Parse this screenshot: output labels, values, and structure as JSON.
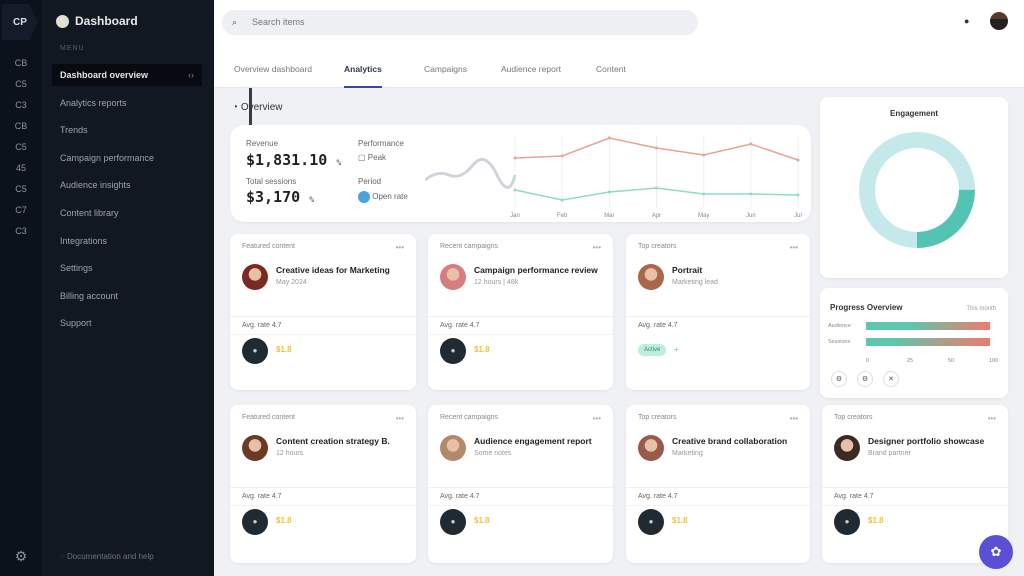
{
  "rail": {
    "logo": "CP",
    "icons": [
      "grid-icon",
      "chart-icon",
      "users-icon",
      "box-icon",
      "layers-icon",
      "tag-icon",
      "settings-icon",
      "help-icon"
    ],
    "labels": [
      "CB",
      "C5",
      "C3",
      "CB",
      "C5",
      "45",
      "C5",
      "C7",
      "C3"
    ]
  },
  "sidebar": {
    "brand": "Dashboard",
    "section": "MENU",
    "items": [
      {
        "label": "Dashboard overview",
        "active": true
      },
      {
        "label": "Analytics reports"
      },
      {
        "label": "Trends"
      },
      {
        "label": "Campaign performance"
      },
      {
        "label": "Audience insights"
      },
      {
        "label": "Content library"
      },
      {
        "label": "Integrations"
      },
      {
        "label": "Settings"
      },
      {
        "label": "Billing account"
      },
      {
        "label": "Support"
      }
    ],
    "footer": "Documentation and help"
  },
  "header": {
    "search_placeholder": "Search items"
  },
  "tabs": [
    {
      "label": "Overview dashboard",
      "active": false
    },
    {
      "label": "Analytics",
      "active": true
    },
    {
      "label": "Campaigns"
    },
    {
      "label": "Audience report"
    },
    {
      "label": "Content"
    }
  ],
  "overview": {
    "title": "Overview",
    "stat1_label": "Revenue",
    "stat1_value": "$1,831.10",
    "stat1_unit": "%",
    "stat2_label": "Total sessions",
    "stat2_value": "$3,170",
    "stat2_unit": "%",
    "legend1": "Performance",
    "legend1_sub": "Peak",
    "legend2": "Period",
    "legend2_sub": "Open rate"
  },
  "chart_data": {
    "type": "line",
    "categories": [
      "Jan",
      "Feb",
      "Mar",
      "Apr",
      "May",
      "Jun",
      "Jul"
    ],
    "series": [
      {
        "values": [
          52,
          54,
          72,
          62,
          55,
          66,
          50
        ],
        "color": "#e9a393"
      },
      {
        "values": [
          20,
          10,
          18,
          22,
          16,
          16,
          15
        ],
        "color": "#8fdcc5"
      }
    ]
  },
  "donut": {
    "title": "Engagement",
    "share": 0.25,
    "colors": [
      "#53c4b4",
      "#c5e9ea"
    ]
  },
  "bars": {
    "title": "Progress Overview",
    "note": "This month",
    "rows": [
      {
        "label": "Audience",
        "value": 1.0
      },
      {
        "label": "Sessions",
        "value": 1.0
      }
    ],
    "ticks": [
      "0",
      "25",
      "50",
      "100"
    ],
    "controls": [
      "filter-icon",
      "settings-icon",
      "close-icon"
    ]
  },
  "cards": [
    {
      "header": "Featured content",
      "title": "Creative ideas for Marketing",
      "sub": "May 2024",
      "meta": "Avg. rate 4.7",
      "value": "$1.8",
      "avatar": "#7a2a22"
    },
    {
      "header": "Recent campaigns",
      "title": "Campaign performance review",
      "sub": "12 hours | 48k",
      "meta": "Avg. rate 4.7",
      "value": "$1.8",
      "avatar": "#d77c80"
    },
    {
      "header": "Top creators",
      "title": "Portrait",
      "sub": "Marketing lead",
      "meta": "Avg. rate 4.7",
      "value": "+",
      "avatar": "#a8674a",
      "badge": "Active"
    },
    {
      "header": "Featured content",
      "title": "Content creation strategy B.",
      "sub": "12 hours",
      "meta": "Avg. rate 4.7",
      "value": "$1.8",
      "avatar": "#6b3a24"
    },
    {
      "header": "Recent campaigns",
      "title": "Audience engagement report",
      "sub": "Some notes",
      "meta": "Avg. rate 4.7",
      "value": "$1.8",
      "avatar": "#b08a6a"
    },
    {
      "header": "Top creators",
      "title": "Creative brand collaboration",
      "sub": "Marketing",
      "meta": "Avg. rate 4.7",
      "value": "$1.8",
      "avatar": "#9a5a4a"
    },
    {
      "header": "Top creators",
      "title": "Designer portfolio showcase",
      "sub": "Brand partner",
      "meta": "Avg. rate 4.7",
      "value": "$1.8",
      "avatar": "#3a2a22"
    }
  ]
}
